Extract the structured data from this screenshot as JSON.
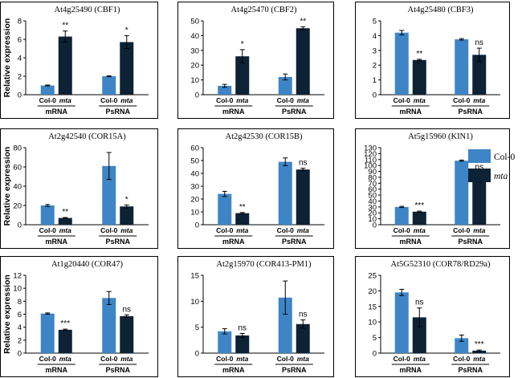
{
  "ylabel": "Relative expression",
  "colors": {
    "col0": "#3d85c6",
    "mta": "#0e2236",
    "frame": "#000000"
  },
  "legend": [
    {
      "label": "Col-0",
      "key": "col0"
    },
    {
      "label": "mta",
      "key": "mta",
      "italic": true
    }
  ],
  "chart_data": [
    {
      "type": "bar",
      "title": "At4g25490 (CBF1)",
      "groups": [
        "mRNA",
        "PsRNA"
      ],
      "categories": [
        "Col-0",
        "mta"
      ],
      "ylim": [
        0,
        8
      ],
      "ticks": [
        0,
        2,
        4,
        6,
        8
      ],
      "series": [
        {
          "name": "Col-0",
          "values": [
            1.0,
            2.0
          ],
          "errors": [
            0.05,
            0.05
          ]
        },
        {
          "name": "mta",
          "values": [
            6.3,
            5.7
          ],
          "errors": [
            0.6,
            0.7
          ]
        }
      ],
      "significance": [
        {
          "group": "mRNA",
          "label": "**"
        },
        {
          "group": "PsRNA",
          "label": "*"
        }
      ]
    },
    {
      "type": "bar",
      "title": "At4g25470 (CBF2)",
      "groups": [
        "mRNA",
        "PsRNA"
      ],
      "categories": [
        "Col-0",
        "mta"
      ],
      "ylim": [
        0,
        50
      ],
      "ticks": [
        0,
        10,
        20,
        30,
        40,
        50
      ],
      "series": [
        {
          "name": "Col-0",
          "values": [
            6,
            12
          ],
          "errors": [
            1,
            2
          ]
        },
        {
          "name": "mta",
          "values": [
            26,
            45
          ],
          "errors": [
            4.5,
            1
          ]
        }
      ],
      "significance": [
        {
          "group": "mRNA",
          "label": "*"
        },
        {
          "group": "PsRNA",
          "label": "**"
        }
      ]
    },
    {
      "type": "bar",
      "title": "At4g25480 (CBF3)",
      "groups": [
        "mRNA",
        "PsRNA"
      ],
      "categories": [
        "Col-0",
        "mta"
      ],
      "ylim": [
        0,
        5
      ],
      "ticks": [
        0,
        1,
        2,
        3,
        4,
        5
      ],
      "series": [
        {
          "name": "Col-0",
          "values": [
            4.2,
            3.75
          ],
          "errors": [
            0.15,
            0.05
          ]
        },
        {
          "name": "mta",
          "values": [
            2.35,
            2.7
          ],
          "errors": [
            0.05,
            0.45
          ]
        }
      ],
      "significance": [
        {
          "group": "mRNA",
          "label": "**"
        },
        {
          "group": "PsRNA",
          "label": "ns"
        }
      ]
    },
    {
      "type": "bar",
      "title": "At2g42540 (COR15A)",
      "groups": [
        "mRNA",
        "PsRNA"
      ],
      "categories": [
        "Col-0",
        "mta"
      ],
      "ylim": [
        0,
        80
      ],
      "ticks": [
        0,
        20,
        40,
        60,
        80
      ],
      "series": [
        {
          "name": "Col-0",
          "values": [
            20,
            61
          ],
          "errors": [
            1,
            14
          ]
        },
        {
          "name": "mta",
          "values": [
            7,
            19
          ],
          "errors": [
            0.5,
            1.5
          ]
        }
      ],
      "significance": [
        {
          "group": "mRNA",
          "label": "**"
        },
        {
          "group": "PsRNA",
          "label": "*"
        }
      ]
    },
    {
      "type": "bar",
      "title": "At2g42530 (COR15B)",
      "groups": [
        "mRNA",
        "PsRNA"
      ],
      "categories": [
        "Col-0",
        "mta"
      ],
      "ylim": [
        0,
        60
      ],
      "ticks": [
        0,
        10,
        20,
        30,
        40,
        50,
        60
      ],
      "series": [
        {
          "name": "Col-0",
          "values": [
            24,
            49
          ],
          "errors": [
            2,
            3
          ]
        },
        {
          "name": "mta",
          "values": [
            9,
            43
          ],
          "errors": [
            0.5,
            1
          ]
        }
      ],
      "significance": [
        {
          "group": "mRNA",
          "label": "**"
        },
        {
          "group": "PsRNA",
          "label": "ns"
        }
      ]
    },
    {
      "type": "bar",
      "title": "At5g15960 (KIN1)",
      "groups": [
        "mRNA",
        "PsRNA"
      ],
      "categories": [
        "Col-0",
        "mta"
      ],
      "ylim": [
        0,
        130
      ],
      "ticks": [
        0,
        10,
        20,
        30,
        40,
        50,
        60,
        70,
        80,
        90,
        100,
        110,
        120,
        130
      ],
      "series": [
        {
          "name": "Col-0",
          "values": [
            30,
            108
          ],
          "errors": [
            1,
            1
          ]
        },
        {
          "name": "mta",
          "values": [
            22,
            80
          ],
          "errors": [
            1,
            8
          ]
        }
      ],
      "significance": [
        {
          "group": "mRNA",
          "label": "***"
        },
        {
          "group": "PsRNA",
          "label": "ns"
        }
      ]
    },
    {
      "type": "bar",
      "title": "At1g20440 (COR47)",
      "groups": [
        "mRNA",
        "PsRNA"
      ],
      "categories": [
        "Col-0",
        "mta"
      ],
      "ylim": [
        0,
        12
      ],
      "ticks": [
        0,
        2,
        4,
        6,
        8,
        10,
        12
      ],
      "series": [
        {
          "name": "Col-0",
          "values": [
            6.1,
            8.5
          ],
          "errors": [
            0.1,
            1
          ]
        },
        {
          "name": "mta",
          "values": [
            3.6,
            5.7
          ],
          "errors": [
            0.1,
            0.2
          ]
        }
      ],
      "significance": [
        {
          "group": "mRNA",
          "label": "***"
        },
        {
          "group": "PsRNA",
          "label": "ns"
        }
      ]
    },
    {
      "type": "bar",
      "title": "At2g15970 (COR413-PM1)",
      "groups": [
        "mRNA",
        "PsRNA"
      ],
      "categories": [
        "Col-0",
        "mta"
      ],
      "ylim": [
        0,
        15
      ],
      "ticks": [
        0,
        5,
        10,
        15
      ],
      "series": [
        {
          "name": "Col-0",
          "values": [
            4.2,
            10.7
          ],
          "errors": [
            0.5,
            3.2
          ]
        },
        {
          "name": "mta",
          "values": [
            3.4,
            5.6
          ],
          "errors": [
            0.4,
            0.8
          ]
        }
      ],
      "significance": [
        {
          "group": "mRNA",
          "label": "ns"
        },
        {
          "group": "PsRNA",
          "label": "ns"
        }
      ]
    },
    {
      "type": "bar",
      "title": "At5G52310 (COR78/RD29a)",
      "groups": [
        "mRNA",
        "PsRNA"
      ],
      "categories": [
        "Col-0",
        "mta"
      ],
      "ylim": [
        0,
        25
      ],
      "ticks": [
        0,
        5,
        10,
        15,
        20,
        25
      ],
      "series": [
        {
          "name": "Col-0",
          "values": [
            19.5,
            4.8
          ],
          "errors": [
            1,
            1
          ]
        },
        {
          "name": "mta",
          "values": [
            11.5,
            0.8
          ],
          "errors": [
            3,
            0.2
          ]
        }
      ],
      "significance": [
        {
          "group": "mRNA",
          "label": "ns"
        },
        {
          "group": "PsRNA",
          "label": "***"
        }
      ]
    }
  ]
}
